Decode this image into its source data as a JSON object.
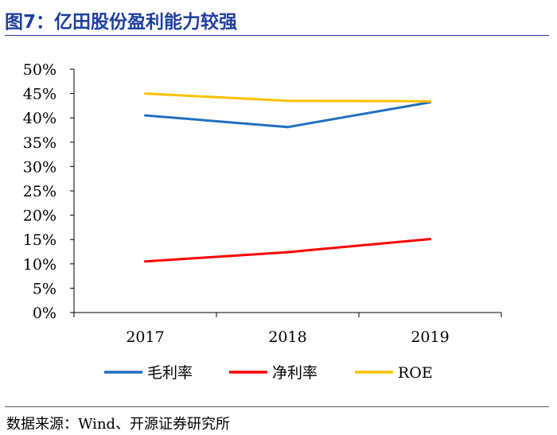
{
  "header": {
    "title": "图7：亿田股份盈利能力较强"
  },
  "footer": {
    "source": "数据来源：Wind、开源证券研究所"
  },
  "colors": {
    "title": "#1f3f9f",
    "series_gross": "#1f6fbf",
    "series_net": "#ff0000",
    "series_roe": "#ffc000"
  },
  "chart_data": {
    "type": "line",
    "title": "图7：亿田股份盈利能力较强",
    "xlabel": "",
    "ylabel": "",
    "categories": [
      "2017",
      "2018",
      "2019"
    ],
    "ylim": [
      0,
      50
    ],
    "yticks": [
      "0%",
      "5%",
      "10%",
      "15%",
      "20%",
      "25%",
      "30%",
      "35%",
      "40%",
      "45%",
      "50%"
    ],
    "legend_position": "bottom",
    "grid": false,
    "series": [
      {
        "name": "毛利率",
        "color": "#1f6fbf",
        "values": [
          40.5,
          38.1,
          43.2
        ]
      },
      {
        "name": "净利率",
        "color": "#ff0000",
        "values": [
          10.5,
          12.4,
          15.1
        ]
      },
      {
        "name": "ROE",
        "color": "#ffc000",
        "values": [
          45.0,
          43.5,
          43.4
        ]
      }
    ]
  }
}
